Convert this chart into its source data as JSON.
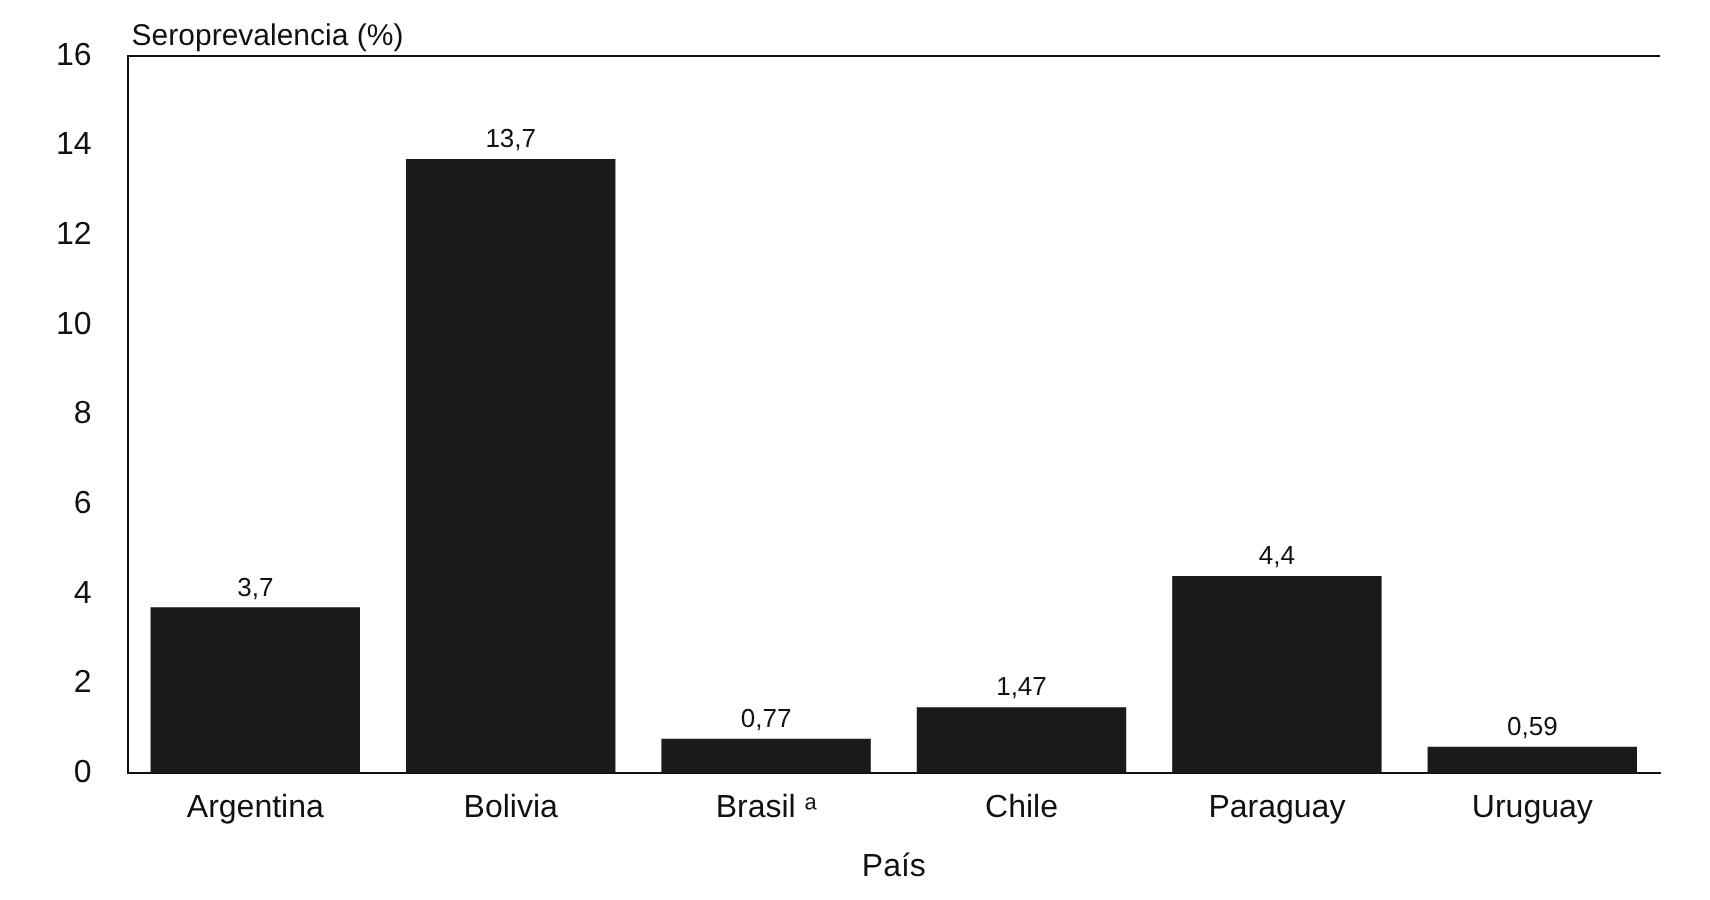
{
  "chart_data": {
    "type": "bar",
    "ylabel": "Seroprevalencia (%)",
    "xlabel": "País",
    "categories": [
      "Argentina",
      "Bolivia",
      "Brasil ᵃ",
      "Chile",
      "Paraguay",
      "Uruguay"
    ],
    "values": [
      3.7,
      13.7,
      0.77,
      1.47,
      4.4,
      0.59
    ],
    "value_labels": [
      "3,7",
      "13,7",
      "0,77",
      "1,47",
      "4,4",
      "0,59"
    ],
    "color": "#1a1a1a",
    "ylim": [
      0,
      16
    ],
    "yticks": [
      0,
      2,
      4,
      6,
      8,
      10,
      12,
      14,
      16
    ],
    "grid": false,
    "legend": false
  }
}
